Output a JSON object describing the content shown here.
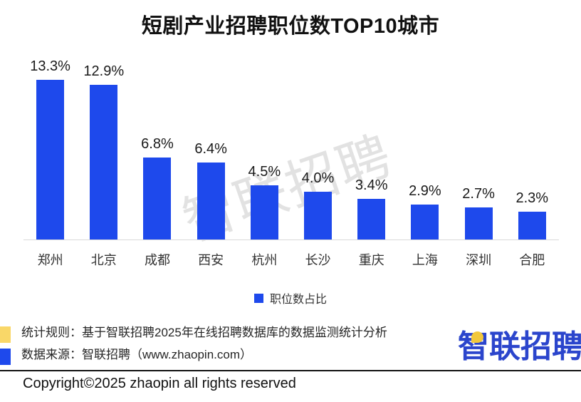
{
  "title": "短剧产业招聘职位数TOP10城市",
  "watermark": {
    "text": "智联招聘"
  },
  "chart_data": {
    "type": "bar",
    "title": "短剧产业招聘职位数TOP10城市",
    "categories": [
      "郑州",
      "北京",
      "成都",
      "西安",
      "杭州",
      "长沙",
      "重庆",
      "上海",
      "深圳",
      "合肥"
    ],
    "values": [
      13.3,
      12.9,
      6.8,
      6.4,
      4.5,
      4.0,
      3.4,
      2.9,
      2.7,
      2.3
    ],
    "value_labels": [
      "13.3%",
      "12.9%",
      "6.8%",
      "6.4%",
      "4.5%",
      "4.0%",
      "3.4%",
      "2.9%",
      "2.7%",
      "2.3%"
    ],
    "series_name": "职位数占比",
    "xlabel": "",
    "ylabel": "",
    "ylim": [
      0,
      14
    ],
    "grid": false,
    "legend_position": "bottom",
    "data_label_format": "percent"
  },
  "legend": {
    "label": "职位数占比"
  },
  "footer": {
    "stat_rule": "统计规则：基于智联招聘2025年在线招聘数据库的数据监测统计分析",
    "data_source": "数据来源：智联招聘（www.zhaopin.com）"
  },
  "logo": {
    "char1": "智",
    "rest": "联招聘",
    "full_text": "智联招聘"
  },
  "copyright": "Copyright©2025 zhaopin all rights reserved",
  "colors": {
    "bar": "#1e49ec",
    "legend_swatch": "#1e49ec",
    "note_yellow": "#f9d768",
    "note_blue": "#1e49ec",
    "logo_blue": "#2b45cc",
    "logo_yellow": "#f2c83c",
    "watermark": "#e2e2e2",
    "axis_line": "#d9d9d9"
  }
}
